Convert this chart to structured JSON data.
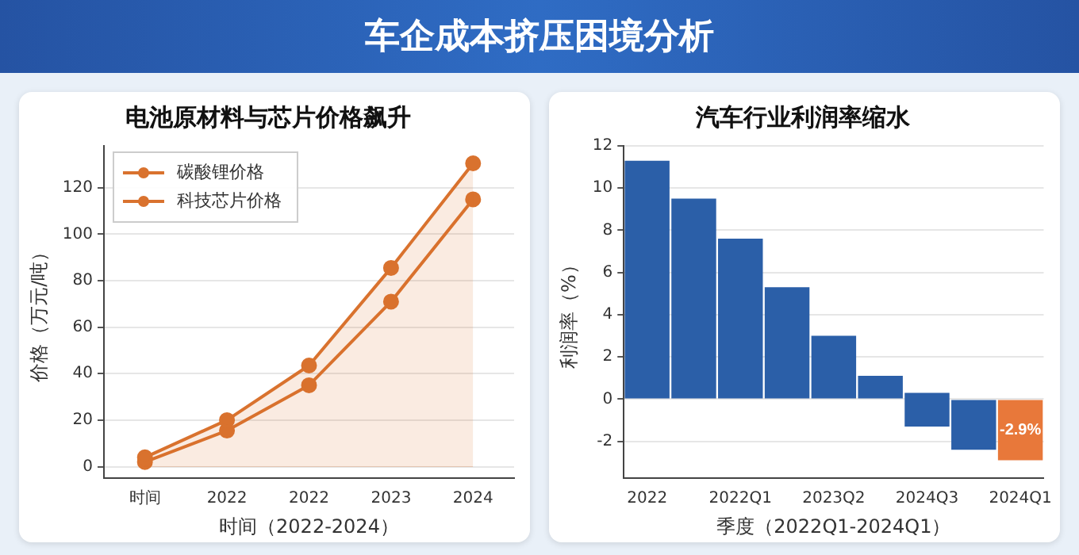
{
  "chart_data": [
    {
      "type": "other",
      "title": "车企成本挤压困境分析"
    },
    {
      "type": "line",
      "title": "电池原材料与芯片价格飙升",
      "xlabel": "时间（2022-2024）",
      "ylabel": "价格（万元/吨）",
      "categories": [
        "时间",
        "2022",
        "2022",
        "2023",
        "2024"
      ],
      "series": [
        {
          "name": "碳酸锂价格",
          "type": "area",
          "color": "#d9722e",
          "values": [
            4,
            20,
            43.5,
            85.5,
            130.5
          ]
        },
        {
          "name": "科技芯片价格",
          "color": "#d9722e",
          "values": [
            2,
            15.5,
            35,
            71,
            115
          ]
        }
      ],
      "ylim": [
        -5,
        138
      ],
      "yticks": [
        0,
        20,
        40,
        60,
        80,
        100,
        120
      ],
      "grid": "y",
      "legend": "top left",
      "marker": "circle"
    },
    {
      "type": "bar",
      "title": "汽车行业利润率缩水",
      "xlabel": "季度（2022Q1-2024Q1）",
      "ylabel": "利润率（%）",
      "categories": [
        "2022",
        null,
        "2022Q1",
        null,
        "2023Q2",
        null,
        "2024Q3",
        null,
        "2024Q1"
      ],
      "values": [
        11.3,
        9.5,
        7.6,
        5.3,
        3,
        1.1,
        1.6,
        -2.4,
        -2.9
      ],
      "base": [
        0,
        0,
        0,
        0,
        0,
        0,
        -1.3,
        0,
        0
      ],
      "colors": [
        "#2b5fa8",
        "#2b5fa8",
        "#2b5fa8",
        "#2b5fa8",
        "#2b5fa8",
        "#2b5fa8",
        "#2b5fa8",
        "#2b5fa8",
        "#e8783a"
      ],
      "value_labels": [
        null,
        null,
        null,
        null,
        null,
        null,
        null,
        null,
        "-2.9%"
      ],
      "ylim": [
        -3.75,
        12
      ],
      "yticks": [
        -2,
        0,
        2,
        4,
        6,
        8,
        10,
        12
      ],
      "grid": "y"
    }
  ]
}
